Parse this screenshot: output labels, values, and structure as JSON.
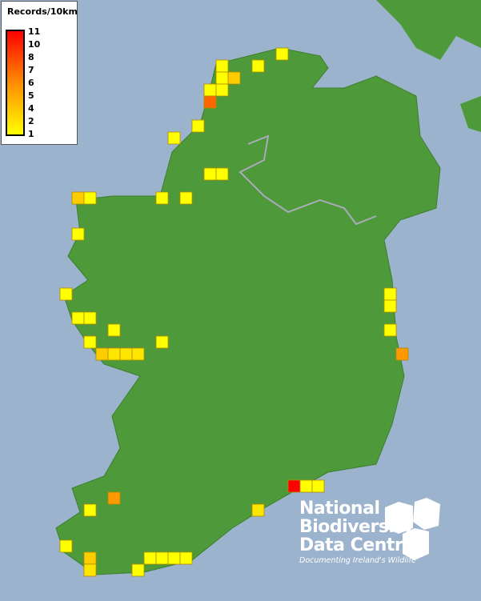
{
  "legend": {
    "title": "Records/10km",
    "ticks": [
      "11",
      "10",
      "8",
      "7",
      "6",
      "5",
      "4",
      "2",
      "1"
    ],
    "min_color": "#ffff00",
    "max_color": "#ff0000"
  },
  "logo": {
    "line1": "National",
    "line2": "Biodiversity",
    "line3": "Data Centre",
    "tagline": "Documenting Ireland's Wildlife"
  },
  "colors": {
    "sea": "#9bb3cc",
    "land": "#4e9a3a",
    "square_border": "#b08a00"
  },
  "records": [
    1,
    1,
    1,
    1,
    3,
    1,
    1,
    7,
    1,
    1,
    1,
    1,
    3,
    1,
    1,
    1,
    1,
    1,
    1,
    1,
    1,
    1,
    1,
    3,
    2,
    2,
    2,
    1,
    1,
    1,
    5,
    11,
    1,
    1,
    5,
    1,
    2,
    1,
    3,
    2,
    1,
    1,
    1,
    1,
    1
  ]
}
